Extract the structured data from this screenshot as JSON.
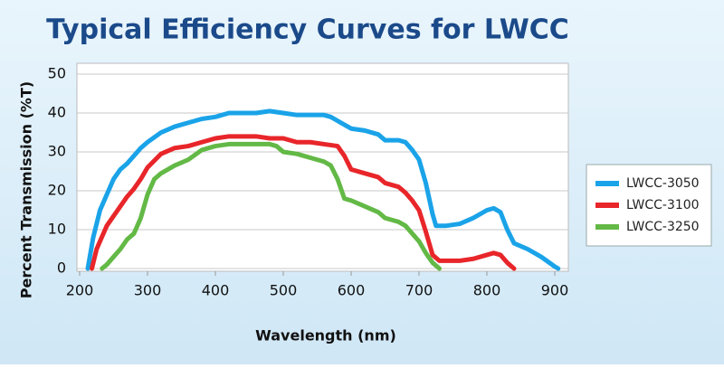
{
  "chart_data": {
    "type": "line",
    "title": "Typical Efficiency Curves for LWCC",
    "x_label": "Wavelength (nm)",
    "y_label": "Percent Transmission (%T)",
    "xlim": [
      196,
      920
    ],
    "ylim": [
      -0.7,
      52.8
    ],
    "xticks": [
      200,
      300,
      400,
      500,
      600,
      700,
      800,
      900
    ],
    "yticks": [
      0,
      10,
      20,
      30,
      40,
      50
    ],
    "grid": true,
    "legend": "right",
    "series": [
      {
        "name": "LWCC-3050",
        "color": "#1aa3e8",
        "x": [
          212,
          220,
          230,
          240,
          250,
          260,
          270,
          280,
          290,
          300,
          320,
          340,
          360,
          380,
          400,
          420,
          440,
          460,
          480,
          500,
          520,
          540,
          560,
          570,
          580,
          590,
          600,
          620,
          640,
          650,
          670,
          680,
          690,
          700,
          710,
          720,
          725,
          740,
          760,
          780,
          800,
          810,
          820,
          830,
          840,
          860,
          880,
          900,
          905
        ],
        "values": [
          0,
          8,
          15,
          19,
          23,
          25.5,
          27,
          29,
          31,
          32.5,
          35,
          36.5,
          37.5,
          38.5,
          39,
          40,
          40,
          40,
          40.5,
          40,
          39.5,
          39.5,
          39.5,
          39,
          38,
          37,
          36,
          35.5,
          34.5,
          33,
          33,
          32.5,
          30.5,
          28,
          22,
          14,
          11,
          11,
          11.5,
          13,
          15,
          15.5,
          14.5,
          10,
          6.5,
          5,
          3,
          0.5,
          0
        ]
      },
      {
        "name": "LWCC-3100",
        "color": "#e8262a",
        "x": [
          218,
          225,
          240,
          260,
          270,
          280,
          290,
          300,
          320,
          340,
          360,
          380,
          400,
          420,
          440,
          460,
          480,
          500,
          520,
          540,
          560,
          580,
          590,
          600,
          620,
          640,
          650,
          670,
          680,
          690,
          700,
          710,
          720,
          730,
          760,
          780,
          800,
          810,
          820,
          830,
          840
        ],
        "values": [
          0,
          5,
          11,
          16,
          18.5,
          20.5,
          23,
          26,
          29.5,
          31,
          31.5,
          32.5,
          33.5,
          34,
          34,
          34,
          33.5,
          33.5,
          32.5,
          32.5,
          32,
          31.5,
          29,
          25.5,
          24.5,
          23.5,
          22,
          21,
          19.5,
          17.5,
          15,
          9.5,
          3.5,
          2,
          2,
          2.5,
          3.5,
          4,
          3.5,
          1.5,
          0
        ]
      },
      {
        "name": "LWCC-3250",
        "color": "#63b946",
        "x": [
          233,
          240,
          260,
          270,
          280,
          290,
          300,
          310,
          320,
          340,
          360,
          380,
          400,
          420,
          440,
          460,
          480,
          490,
          500,
          520,
          540,
          560,
          570,
          580,
          590,
          600,
          620,
          640,
          650,
          670,
          680,
          690,
          700,
          710,
          720,
          730
        ],
        "values": [
          0,
          1,
          5,
          7.5,
          9,
          13,
          19,
          23,
          24.5,
          26.5,
          28,
          30.5,
          31.5,
          32,
          32,
          32,
          32,
          31.5,
          30,
          29.5,
          28.5,
          27.5,
          26.5,
          23,
          18,
          17.5,
          16,
          14.5,
          13,
          12,
          11,
          9,
          7,
          4,
          1.5,
          0
        ]
      }
    ]
  }
}
